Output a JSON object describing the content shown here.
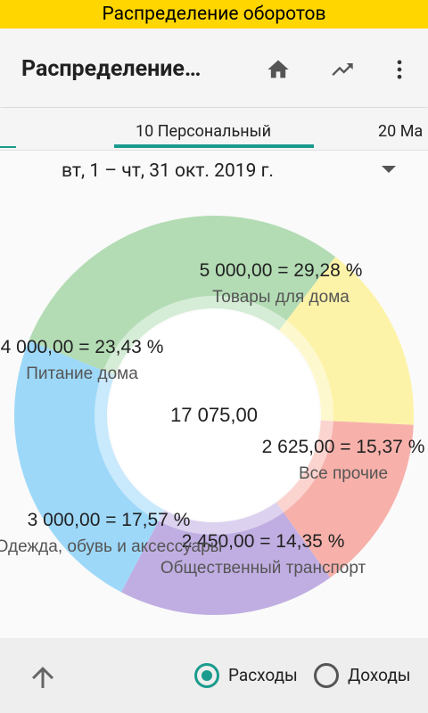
{
  "status_banner": "Распределение оборотов",
  "appbar": {
    "title": "Распределение…",
    "icons": [
      "home-icon",
      "trending-up-icon",
      "more-vert-icon"
    ]
  },
  "tabs": [
    {
      "label": "10 Персональный",
      "selected": true
    },
    {
      "label": "20 Ма",
      "selected": false
    }
  ],
  "period": "вт, 1 – чт, 31 окт. 2019 г.",
  "chart_data": {
    "type": "pie",
    "donut": true,
    "total_label": "17 075,00",
    "slices": [
      {
        "name": "Товары для дома",
        "value": 5000.0,
        "value_label": "5 000,00 = 29,28 %",
        "color": "#b3dcb4"
      },
      {
        "name": "Все прочие",
        "value": 2625.0,
        "value_label": "2 625,00 = 15,37 %",
        "color": "#fdf3a8"
      },
      {
        "name": "Общественный транспорт",
        "value": 2450.0,
        "value_label": "2 450,00 = 14,35 %",
        "color": "#f7b1aa"
      },
      {
        "name": "Одежда, обувь и аксессуары",
        "value": 3000.0,
        "value_label": "3 000,00 = 17,57 %",
        "color": "#c0aee2"
      },
      {
        "name": "Питание дома",
        "value": 4000.0,
        "value_label": "4 000,00 = 23,43 %",
        "color": "#9dd8f9"
      }
    ]
  },
  "bottombar": {
    "radio_expenses": "Расходы",
    "radio_income": "Доходы",
    "selected": "expenses"
  },
  "colors": {
    "accent": "#1a9b8e",
    "banner": "#ffd600"
  }
}
